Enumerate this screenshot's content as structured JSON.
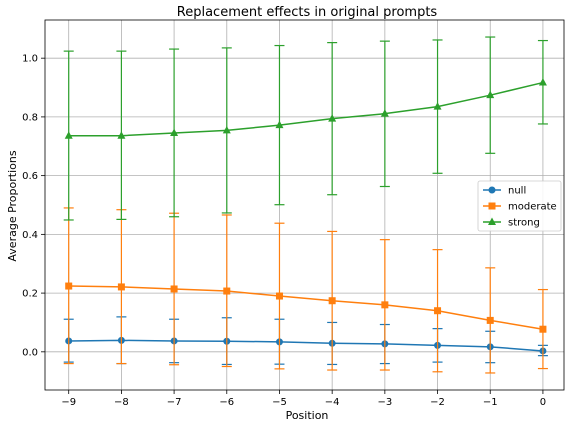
{
  "chart_data": {
    "type": "line",
    "title": "Replacement effects in original prompts",
    "xlabel": "Position",
    "ylabel": "Average Proportions",
    "x": [
      -9,
      -8,
      -7,
      -6,
      -5,
      -4,
      -3,
      -2,
      -1,
      0
    ],
    "x_tick_labels": [
      "−9",
      "−8",
      "−7",
      "−6",
      "−5",
      "−4",
      "−3",
      "−2",
      "−1",
      "0"
    ],
    "xlim": [
      -9.45,
      0.4
    ],
    "ylim": [
      -0.13,
      1.13
    ],
    "y_ticks": [
      0.0,
      0.2,
      0.4,
      0.6,
      0.8,
      1.0
    ],
    "y_tick_labels": [
      "0.0",
      "0.2",
      "0.4",
      "0.6",
      "0.8",
      "1.0"
    ],
    "grid": true,
    "legend_position": "center-right",
    "series": [
      {
        "name": "null",
        "color": "#1f77b4",
        "marker": "circle",
        "values": [
          0.037,
          0.039,
          0.037,
          0.036,
          0.034,
          0.029,
          0.027,
          0.022,
          0.017,
          0.003
        ],
        "err_low": [
          -0.035,
          -0.04,
          -0.037,
          -0.043,
          -0.042,
          -0.043,
          -0.04,
          -0.035,
          -0.037,
          -0.013
        ],
        "err_high": [
          0.111,
          0.119,
          0.111,
          0.116,
          0.111,
          0.1,
          0.093,
          0.079,
          0.07,
          0.022
        ]
      },
      {
        "name": "moderate",
        "color": "#ff7f0e",
        "marker": "square",
        "values": [
          0.224,
          0.221,
          0.214,
          0.207,
          0.19,
          0.174,
          0.16,
          0.14,
          0.107,
          0.077
        ],
        "err_low": [
          -0.04,
          -0.04,
          -0.044,
          -0.05,
          -0.058,
          -0.062,
          -0.062,
          -0.068,
          -0.072,
          -0.057
        ],
        "err_high": [
          0.49,
          0.484,
          0.472,
          0.466,
          0.438,
          0.41,
          0.382,
          0.348,
          0.286,
          0.212
        ]
      },
      {
        "name": "strong",
        "color": "#2ca02c",
        "marker": "triangle",
        "values": [
          0.736,
          0.736,
          0.745,
          0.754,
          0.772,
          0.794,
          0.811,
          0.835,
          0.874,
          0.917
        ],
        "err_low": [
          0.449,
          0.451,
          0.46,
          0.473,
          0.501,
          0.535,
          0.563,
          0.608,
          0.676,
          0.776
        ],
        "err_high": [
          1.024,
          1.024,
          1.031,
          1.035,
          1.043,
          1.053,
          1.058,
          1.062,
          1.072,
          1.06
        ]
      }
    ]
  }
}
